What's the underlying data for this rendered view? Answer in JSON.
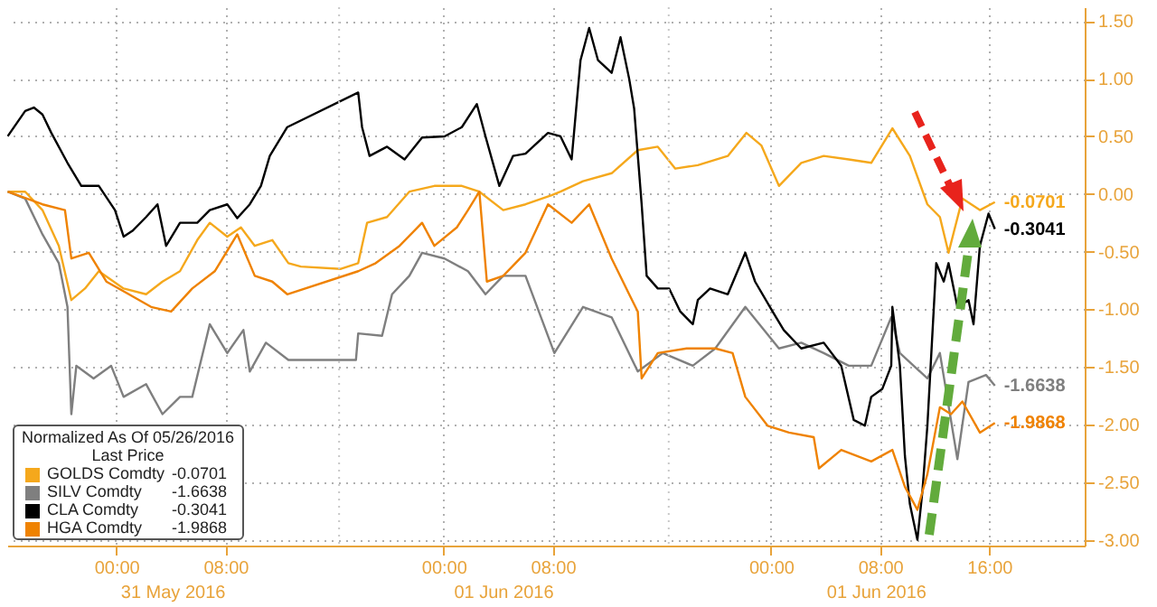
{
  "chart_data": {
    "type": "line",
    "legend_title": "Normalized As Of 05/26/2016",
    "legend": "bottom left",
    "grid": true,
    "annotations": [
      "31 May 2016",
      "01 Jun 2016",
      "01 Jun 2016",
      "Last Price"
    ],
    "xlim": [
      "2016-05-30T16:00",
      "2016-06-02T23:00"
    ],
    "ylim": [
      -3.05,
      1.62
    ],
    "xticks": [
      {
        "value": "2016-05-31T00:00",
        "label": "00:00"
      },
      {
        "value": "2016-05-31T08:00",
        "label": "08:00"
      },
      {
        "value": "2016-06-01T00:00",
        "label": "00:00"
      },
      {
        "value": "2016-06-01T08:00",
        "label": "08:00"
      },
      {
        "value": "2016-06-02T00:00",
        "label": "00:00"
      },
      {
        "value": "2016-06-02T08:00",
        "label": "08:00"
      },
      {
        "value": "2016-06-02T16:00",
        "label": "16:00"
      }
    ],
    "yticks": [
      {
        "value": -3,
        "label": "-3.00"
      },
      {
        "value": -2.5,
        "label": "-2.50"
      },
      {
        "value": -2,
        "label": "-2.00"
      },
      {
        "value": -1.5,
        "label": "-1.50"
      },
      {
        "value": -1,
        "label": "-1.00"
      },
      {
        "value": -0.5,
        "label": "-0.50"
      },
      {
        "value": 0,
        "label": "0.00"
      },
      {
        "value": 0.5,
        "label": "0.50"
      },
      {
        "value": 1,
        "label": "1.00"
      },
      {
        "value": 1.5,
        "label": "1.50"
      }
    ],
    "ref_lines": [
      {
        "axis": "x",
        "value": "2016-05-31T16:20",
        "color": "#c8c8c8",
        "line_style": "dotted"
      },
      {
        "axis": "x",
        "value": "2016-06-01T16:30",
        "color": "#c8c8c8",
        "line_style": "dotted"
      }
    ],
    "series": [
      {
        "name": "GOLDS Comdty",
        "color": "#f5a81c",
        "x": [
          "2016-05-30T16:02",
          "2016-05-30T17:19",
          "2016-05-30T18:35",
          "2016-05-30T19:47",
          "2016-05-30T20:42",
          "2016-05-30T21:42",
          "2016-05-30T22:43",
          "2016-05-31T00:32",
          "2016-05-31T02:11",
          "2016-05-31T03:23",
          "2016-05-31T04:40",
          "2016-05-31T05:56",
          "2016-05-31T06:51",
          "2016-05-31T08:08",
          "2016-05-31T09:08",
          "2016-05-31T10:09",
          "2016-05-31T11:26",
          "2016-05-31T12:37",
          "2016-05-31T13:32",
          "2016-05-31T16:28",
          "2016-05-31T17:44",
          "2016-05-31T18:23",
          "2016-05-31T19:51",
          "2016-05-31T21:29",
          "2016-05-31T23:19",
          "2016-06-01T01:20",
          "2016-06-01T02:37",
          "2016-06-01T04:22",
          "2016-06-01T06:00",
          "2016-06-01T07:55",
          "2016-06-01T08:34",
          "2016-06-01T10:13",
          "2016-06-01T12:19",
          "2016-06-01T14:14",
          "2016-06-01T15:42",
          "2016-06-01T16:59",
          "2016-06-01T18:38",
          "2016-06-01T20:50",
          "2016-06-01T22:12",
          "2016-06-01T23:18",
          "2016-06-02T00:35",
          "2016-06-02T02:13",
          "2016-06-02T03:52",
          "2016-06-02T05:42",
          "2016-06-02T07:21",
          "2016-06-02T08:54",
          "2016-06-02T10:11",
          "2016-06-02T11:28",
          "2016-06-02T12:23",
          "2016-06-02T13:01",
          "2016-06-02T14:02",
          "2016-06-02T15:19",
          "2016-06-02T16:25"
        ],
        "values": [
          0.02,
          0.02,
          -0.14,
          -0.45,
          -0.92,
          -0.82,
          -0.67,
          -0.82,
          -0.87,
          -0.76,
          -0.67,
          -0.4,
          -0.25,
          -0.37,
          -0.29,
          -0.45,
          -0.4,
          -0.6,
          -0.63,
          -0.65,
          -0.6,
          -0.25,
          -0.2,
          0.02,
          0.07,
          0.07,
          0.02,
          -0.14,
          -0.09,
          -0.01,
          0.02,
          0.11,
          0.18,
          0.38,
          0.41,
          0.22,
          0.25,
          0.33,
          0.53,
          0.42,
          0.07,
          0.27,
          0.33,
          0.3,
          0.27,
          0.57,
          0.33,
          -0.09,
          -0.2,
          -0.51,
          -0.04,
          -0.14,
          -0.0701
        ],
        "value_labels": [
          null,
          null,
          null,
          null,
          null,
          null,
          null,
          null,
          null,
          null,
          null,
          null,
          null,
          null,
          null,
          null,
          null,
          null,
          null,
          null,
          null,
          null,
          null,
          null,
          null,
          null,
          null,
          null,
          null,
          null,
          null,
          null,
          null,
          null,
          null,
          null,
          null,
          null,
          null,
          null,
          null,
          null,
          null,
          null,
          null,
          null,
          null,
          null,
          null,
          null,
          null,
          null,
          "-0.0701"
        ]
      },
      {
        "name": "SILV Comdty",
        "color": "#7f7f7f",
        "x": [
          "2016-05-30T16:02",
          "2016-05-30T17:19",
          "2016-05-30T18:35",
          "2016-05-30T19:47",
          "2016-05-30T20:25",
          "2016-05-30T20:42",
          "2016-05-30T21:04",
          "2016-05-30T22:20",
          "2016-05-30T23:37",
          "2016-05-31T00:32",
          "2016-05-31T02:11",
          "2016-05-31T03:23",
          "2016-05-31T04:40",
          "2016-05-31T05:34",
          "2016-05-31T06:51",
          "2016-05-31T08:08",
          "2016-05-31T09:19",
          "2016-05-31T09:47",
          "2016-05-31T10:58",
          "2016-05-31T12:37",
          "2016-05-31T17:34",
          "2016-05-31T17:44",
          "2016-05-31T19:29",
          "2016-05-31T20:13",
          "2016-05-31T21:29",
          "2016-05-31T22:25",
          "2016-06-01T00:04",
          "2016-06-01T01:47",
          "2016-06-01T03:04",
          "2016-06-01T04:22",
          "2016-06-01T06:00",
          "2016-06-01T08:07",
          "2016-06-01T10:13",
          "2016-06-01T12:19",
          "2016-06-01T14:14",
          "2016-06-01T16:04",
          "2016-06-01T18:16",
          "2016-06-01T19:55",
          "2016-06-01T22:07",
          "2016-06-02T00:35",
          "2016-06-02T02:13",
          "2016-06-02T03:52",
          "2016-06-02T05:42",
          "2016-06-02T07:21",
          "2016-06-02T08:49",
          "2016-06-02T09:27",
          "2016-06-02T11:28",
          "2016-06-02T12:23",
          "2016-06-02T13:40",
          "2016-06-02T14:29",
          "2016-06-02T15:46",
          "2016-06-02T16:25"
        ],
        "values": [
          0.02,
          -0.04,
          -0.35,
          -0.6,
          -0.98,
          -1.91,
          -1.49,
          -1.6,
          -1.49,
          -1.76,
          -1.65,
          -1.91,
          -1.76,
          -1.76,
          -1.13,
          -1.38,
          -1.18,
          -1.54,
          -1.29,
          -1.44,
          -1.44,
          -1.21,
          -1.23,
          -0.87,
          -0.71,
          -0.51,
          -0.56,
          -0.67,
          -0.87,
          -0.71,
          -0.71,
          -1.38,
          -0.98,
          -1.07,
          -1.54,
          -1.38,
          -1.49,
          -1.34,
          -0.98,
          -1.34,
          -1.29,
          -1.38,
          -1.49,
          -1.49,
          -1.07,
          -1.38,
          -1.6,
          -1.38,
          -2.3,
          -1.63,
          -1.57,
          -1.6638
        ],
        "value_labels": [
          null,
          null,
          null,
          null,
          null,
          null,
          null,
          null,
          null,
          null,
          null,
          null,
          null,
          null,
          null,
          null,
          null,
          null,
          null,
          null,
          null,
          null,
          null,
          null,
          null,
          null,
          null,
          null,
          null,
          null,
          null,
          null,
          null,
          null,
          null,
          null,
          null,
          null,
          null,
          null,
          null,
          null,
          null,
          null,
          null,
          null,
          null,
          null,
          null,
          null,
          null,
          "-1.6638"
        ]
      },
      {
        "name": "CLA Comdty",
        "color": "#000000",
        "x": [
          "2016-05-30T16:02",
          "2016-05-30T17:19",
          "2016-05-30T17:57",
          "2016-05-30T18:35",
          "2016-05-30T19:14",
          "2016-05-30T20:25",
          "2016-05-30T21:26",
          "2016-05-30T22:43",
          "2016-05-30T23:54",
          "2016-05-31T00:32",
          "2016-05-31T01:11",
          "2016-05-31T02:11",
          "2016-05-31T03:01",
          "2016-05-31T03:39",
          "2016-05-31T04:40",
          "2016-05-31T05:56",
          "2016-05-31T06:51",
          "2016-05-31T08:08",
          "2016-05-31T08:52",
          "2016-05-31T09:47",
          "2016-05-31T10:36",
          "2016-05-31T11:15",
          "2016-05-31T12:32",
          "2016-05-31T17:44",
          "2016-05-31T18:01",
          "2016-05-31T18:34",
          "2016-05-31T19:51",
          "2016-05-31T21:08",
          "2016-05-31T22:25",
          "2016-06-01T00:04",
          "2016-06-01T01:20",
          "2016-06-01T02:26",
          "2016-06-01T03:04",
          "2016-06-01T04:05",
          "2016-06-01T05:05",
          "2016-06-01T06:00",
          "2016-06-01T07:39",
          "2016-06-01T08:34",
          "2016-06-01T09:23",
          "2016-06-01T10:02",
          "2016-06-01T10:40",
          "2016-06-01T11:19",
          "2016-06-01T12:19",
          "2016-06-01T12:58",
          "2016-06-01T13:36",
          "2016-06-01T13:58",
          "2016-06-01T14:31",
          "2016-06-01T14:53",
          "2016-06-01T15:42",
          "2016-06-01T16:32",
          "2016-06-01T17:21",
          "2016-06-01T18:16",
          "2016-06-01T18:38",
          "2016-06-01T19:32",
          "2016-06-01T20:50",
          "2016-06-01T22:07",
          "2016-06-01T22:50",
          "2016-06-02T00:07",
          "2016-06-02T00:56",
          "2016-06-02T02:13",
          "2016-06-02T03:52",
          "2016-06-02T05:09",
          "2016-06-02T06:04",
          "2016-06-02T06:53",
          "2016-06-02T07:21",
          "2016-06-02T08:10",
          "2016-06-02T08:49",
          "2016-06-02T08:54",
          "2016-06-02T09:27",
          "2016-06-02T09:49",
          "2016-06-02T10:11",
          "2016-06-02T10:44",
          "2016-06-02T11:06",
          "2016-06-02T11:28",
          "2016-06-02T12:07",
          "2016-06-02T12:40",
          "2016-06-02T13:01",
          "2016-06-02T13:40",
          "2016-06-02T14:29",
          "2016-06-02T14:51",
          "2016-06-02T15:19",
          "2016-06-02T15:57",
          "2016-06-02T16:25"
        ],
        "values": [
          0.5,
          0.72,
          0.75,
          0.69,
          0.53,
          0.27,
          0.07,
          0.07,
          -0.14,
          -0.37,
          -0.32,
          -0.2,
          -0.09,
          -0.45,
          -0.25,
          -0.25,
          -0.14,
          -0.09,
          -0.21,
          -0.09,
          0.07,
          0.33,
          0.58,
          0.88,
          0.58,
          0.33,
          0.41,
          0.3,
          0.49,
          0.5,
          0.58,
          0.78,
          0.5,
          0.07,
          0.33,
          0.35,
          0.53,
          0.5,
          0.3,
          1.16,
          1.44,
          1.16,
          1.05,
          1.36,
          1,
          0.74,
          -0.09,
          -0.71,
          -0.82,
          -0.82,
          -1.02,
          -1.13,
          -0.92,
          -0.82,
          -0.87,
          -0.51,
          -0.76,
          -1.02,
          -1.18,
          -1.34,
          -1.29,
          -1.49,
          -1.96,
          -2.01,
          -1.76,
          -1.69,
          -1.49,
          -0.98,
          -1.49,
          -2.27,
          -2.69,
          -3,
          -2.58,
          -2.01,
          -0.6,
          -0.76,
          -0.6,
          -0.98,
          -0.92,
          -1.13,
          -0.45,
          -0.17,
          -0.3041
        ],
        "value_labels": [
          null,
          null,
          null,
          null,
          null,
          null,
          null,
          null,
          null,
          null,
          null,
          null,
          null,
          null,
          null,
          null,
          null,
          null,
          null,
          null,
          null,
          null,
          null,
          null,
          null,
          null,
          null,
          null,
          null,
          null,
          null,
          null,
          null,
          null,
          null,
          null,
          null,
          null,
          null,
          null,
          null,
          null,
          null,
          null,
          null,
          null,
          null,
          null,
          null,
          null,
          null,
          null,
          null,
          null,
          null,
          null,
          null,
          null,
          null,
          null,
          null,
          null,
          null,
          null,
          null,
          null,
          null,
          null,
          null,
          null,
          null,
          null,
          null,
          null,
          null,
          null,
          null,
          null,
          null,
          null,
          null,
          null,
          "-0.3041"
        ]
      },
      {
        "name": "HGA Comdty",
        "color": "#ef8200",
        "x": [
          "2016-05-30T16:02",
          "2016-05-30T18:35",
          "2016-05-30T20:14",
          "2016-05-30T20:42",
          "2016-05-30T21:59",
          "2016-05-30T23:16",
          "2016-05-31T00:55",
          "2016-05-31T02:33",
          "2016-05-31T04:01",
          "2016-05-31T05:34",
          "2016-05-31T07:13",
          "2016-05-31T08:52",
          "2016-05-31T10:09",
          "2016-05-31T11:26",
          "2016-05-31T12:32",
          "2016-05-31T17:44",
          "2016-05-31T19:01",
          "2016-05-31T20:46",
          "2016-05-31T22:25",
          "2016-05-31T23:19",
          "2016-06-01T00:58",
          "2016-06-01T01:47",
          "2016-06-01T02:37",
          "2016-06-01T03:10",
          "2016-06-01T04:22",
          "2016-06-01T06:00",
          "2016-06-01T07:39",
          "2016-06-01T09:23",
          "2016-06-01T10:40",
          "2016-06-01T12:19",
          "2016-06-01T13:36",
          "2016-06-01T14:14",
          "2016-06-01T14:31",
          "2016-06-01T15:42",
          "2016-06-01T17:49",
          "2016-06-01T19:55",
          "2016-06-01T21:11",
          "2016-06-01T22:07",
          "2016-06-01T23:45",
          "2016-06-02T01:19",
          "2016-06-02T03:08",
          "2016-06-02T03:31",
          "2016-06-02T05:09",
          "2016-06-02T07:21",
          "2016-06-02T08:54",
          "2016-06-02T09:49",
          "2016-06-02T10:44",
          "2016-06-02T11:28",
          "2016-06-02T12:23",
          "2016-06-02T13:12",
          "2016-06-02T14:02",
          "2016-06-02T15:19",
          "2016-06-02T16:25"
        ],
        "values": [
          0.02,
          -0.09,
          -0.14,
          -0.56,
          -0.51,
          -0.76,
          -0.87,
          -0.98,
          -1.02,
          -0.82,
          -0.67,
          -0.35,
          -0.71,
          -0.76,
          -0.87,
          -0.67,
          -0.6,
          -0.45,
          -0.25,
          -0.45,
          -0.29,
          -0.14,
          0.02,
          -0.76,
          -0.71,
          -0.51,
          -0.09,
          -0.25,
          -0.09,
          -0.56,
          -0.87,
          -1.02,
          -1.6,
          -1.38,
          -1.34,
          -1.34,
          -1.38,
          -1.76,
          -2.01,
          -2.07,
          -2.11,
          -2.38,
          -2.22,
          -2.32,
          -2.22,
          -2.54,
          -2.74,
          -2.43,
          -1.85,
          -1.91,
          -1.8,
          -2.07,
          -1.9868
        ],
        "value_labels": [
          null,
          null,
          null,
          null,
          null,
          null,
          null,
          null,
          null,
          null,
          null,
          null,
          null,
          null,
          null,
          null,
          null,
          null,
          null,
          null,
          null,
          null,
          null,
          null,
          null,
          null,
          null,
          null,
          null,
          null,
          null,
          null,
          null,
          null,
          null,
          null,
          null,
          null,
          null,
          null,
          null,
          null,
          null,
          null,
          null,
          null,
          null,
          null,
          null,
          null,
          null,
          null,
          "-1.9868"
        ]
      }
    ]
  }
}
